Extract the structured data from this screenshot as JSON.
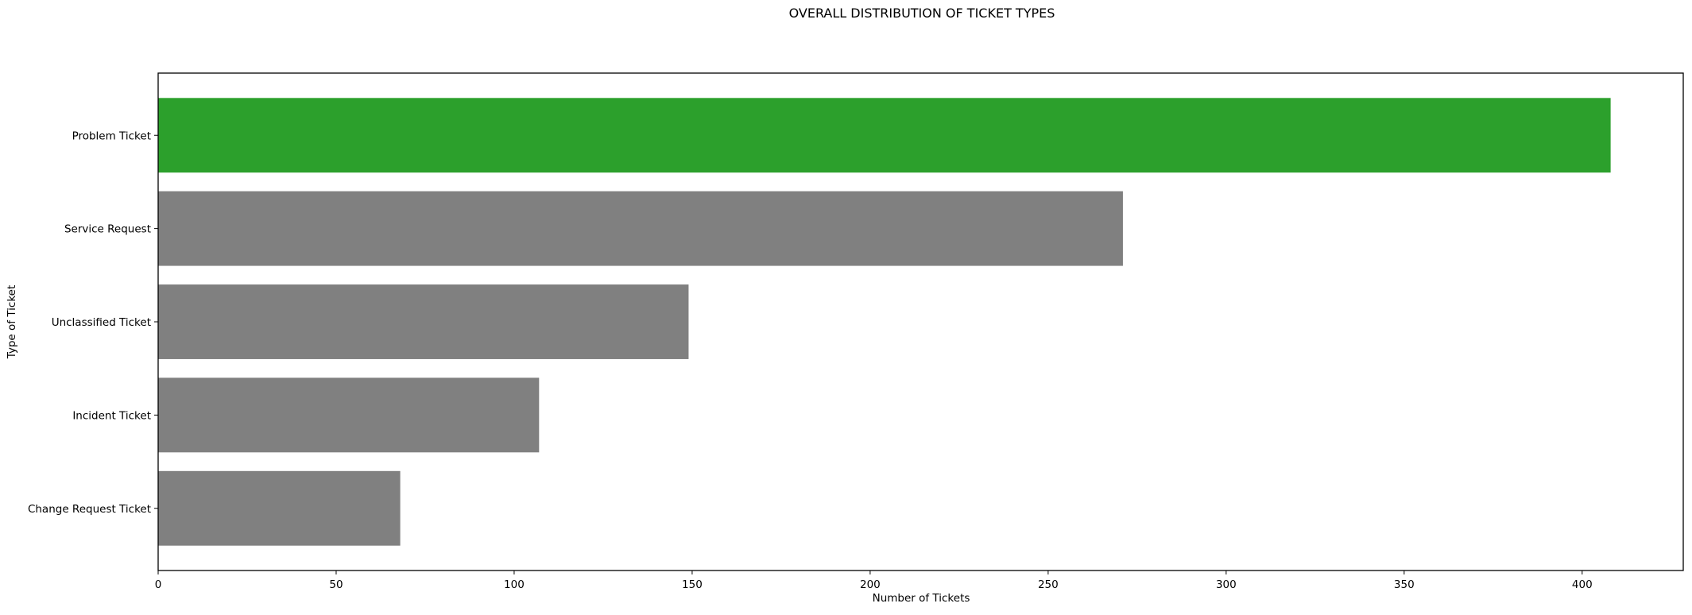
{
  "chart_data": {
    "type": "bar",
    "orientation": "horizontal",
    "title": "OVERALL DISTRIBUTION OF TICKET TYPES",
    "xlabel": "Number of Tickets",
    "ylabel": "Type of Ticket",
    "categories": [
      "Problem Ticket",
      "Service Request",
      "Unclassified Ticket",
      "Incident Ticket",
      "Change Request Ticket"
    ],
    "values": [
      408,
      271,
      149,
      107,
      68
    ],
    "bar_colors": [
      "#2ca02c",
      "#808080",
      "#808080",
      "#808080",
      "#808080"
    ],
    "xlim": [
      0,
      428.4
    ],
    "xticks": [
      0,
      50,
      100,
      150,
      200,
      250,
      300,
      350,
      400
    ],
    "grid": false,
    "legend": "none"
  }
}
